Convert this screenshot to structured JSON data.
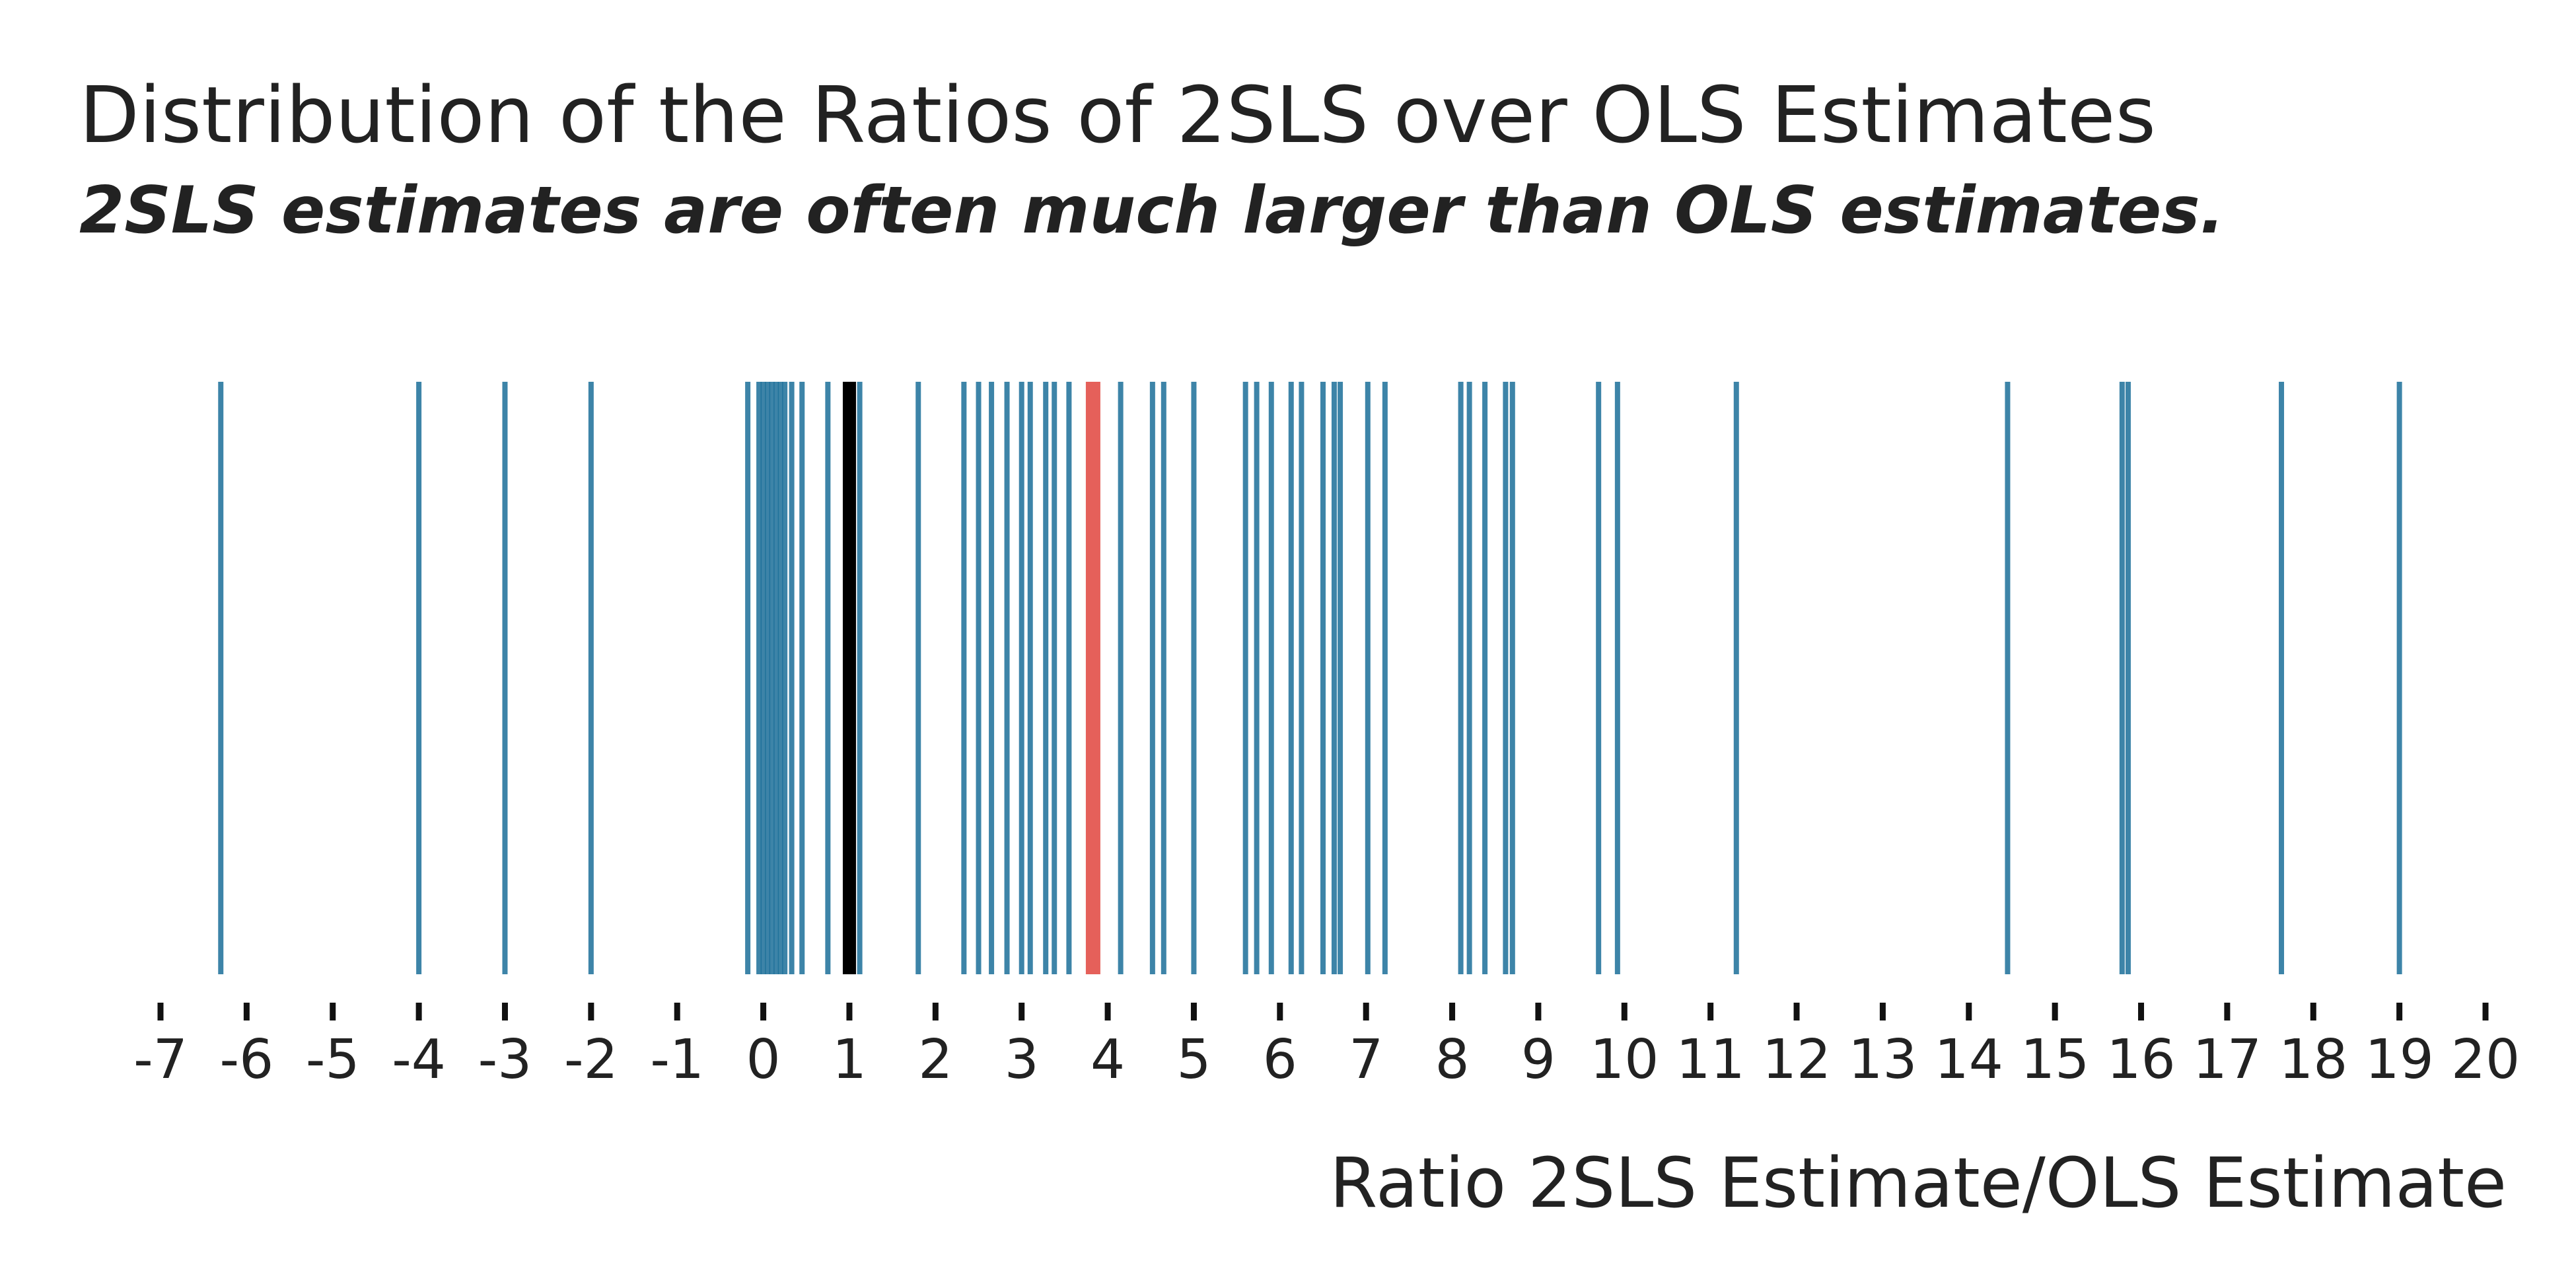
{
  "chart_data": {
    "type": "rug",
    "title": "Distribution of the Ratios of 2SLS over OLS Estimates",
    "subtitle": "2SLS estimates are often much larger than OLS estimates.",
    "xlabel": "Ratio 2SLS Estimate/OLS Estimate",
    "xlim": [
      -7,
      20
    ],
    "xticks": [
      -7,
      -6,
      -5,
      -4,
      -3,
      -2,
      -1,
      0,
      1,
      2,
      3,
      4,
      5,
      6,
      7,
      8,
      9,
      10,
      11,
      12,
      13,
      14,
      15,
      16,
      17,
      18,
      19,
      20
    ],
    "grid": false,
    "colors": {
      "series": "#1b6f99",
      "reference": "#000000",
      "highlight": "#e5605a"
    },
    "values": [
      -6.3,
      -4.0,
      -3.0,
      -2.0,
      -0.18,
      -0.05,
      0.0,
      0.05,
      0.1,
      0.15,
      0.2,
      0.25,
      0.33,
      0.45,
      0.75,
      1.12,
      1.8,
      2.33,
      2.5,
      2.65,
      2.83,
      3.0,
      3.1,
      3.28,
      3.38,
      3.55,
      4.15,
      4.52,
      4.65,
      5.0,
      5.6,
      5.73,
      5.9,
      6.13,
      6.25,
      6.5,
      6.63,
      6.7,
      7.02,
      7.22,
      8.1,
      8.2,
      8.38,
      8.62,
      8.7,
      9.7,
      9.92,
      11.3,
      14.45,
      15.78,
      15.85,
      17.63,
      19.0
    ],
    "reference_value": 1.0,
    "highlight_value": 3.83
  }
}
